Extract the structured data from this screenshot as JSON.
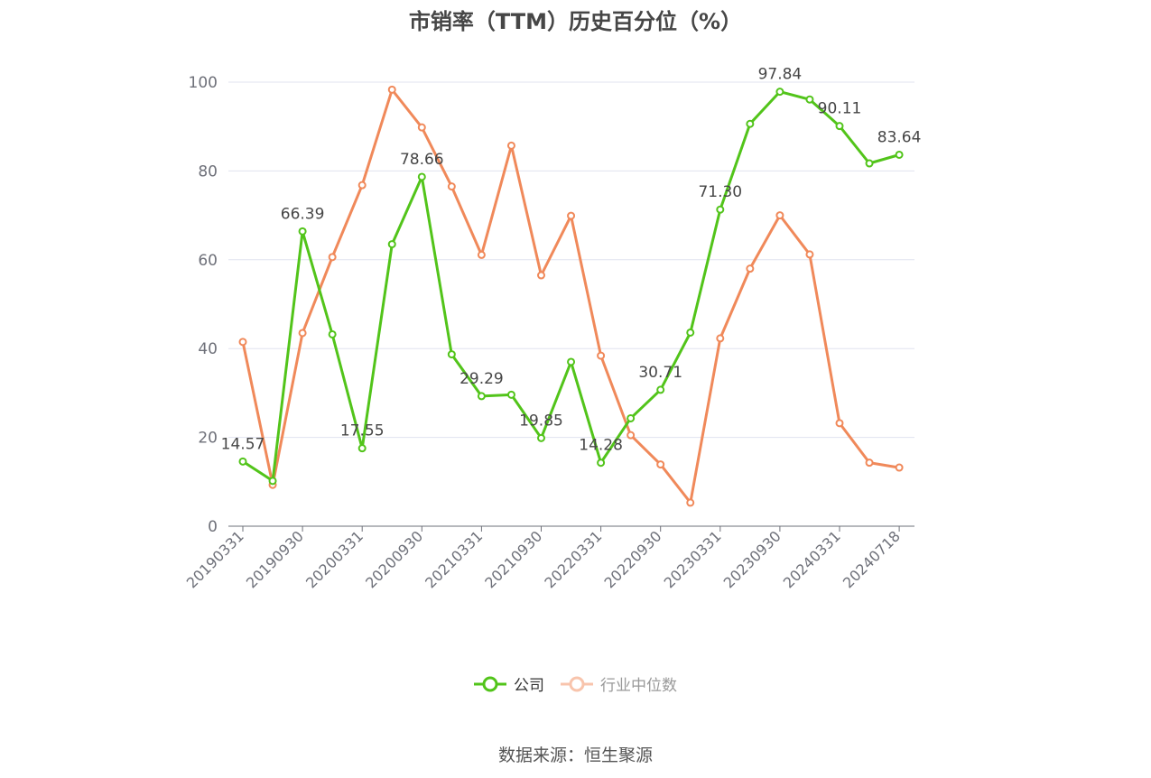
{
  "title": "市销率（TTM）历史百分位（%）",
  "source": "数据来源：恒生聚源",
  "colors": {
    "company": "#52c41a",
    "industry": "#f0895a",
    "grid": "#e0e3ef",
    "axis": "#6e7079",
    "tick_text": "#6e7079",
    "label_text": "#464646"
  },
  "chart_data": {
    "type": "line",
    "title": "市销率（TTM）历史百分位（%）",
    "xlabel": "",
    "ylabel": "",
    "ylim": [
      0,
      100
    ],
    "y_ticks": [
      0,
      20,
      40,
      60,
      80,
      100
    ],
    "grid": true,
    "legend_position": "bottom",
    "x_tick_labels": [
      "20190331",
      "20190930",
      "20200331",
      "20200930",
      "20210331",
      "20210930",
      "20220331",
      "20220930",
      "20230331",
      "20230930",
      "20240331",
      "20240718"
    ],
    "x": [
      "20190331",
      "20190630",
      "20190930",
      "20191231",
      "20200331",
      "20200630",
      "20200930",
      "20201231",
      "20210331",
      "20210630",
      "20210930",
      "20211231",
      "20220331",
      "20220630",
      "20220930",
      "20221231",
      "20230331",
      "20230630",
      "20230930",
      "20231231",
      "20240331",
      "20240630",
      "20240718"
    ],
    "series": [
      {
        "name": "公司",
        "color": "#52c41a",
        "values": [
          14.57,
          10.2,
          66.39,
          43.2,
          17.55,
          63.5,
          78.66,
          38.7,
          29.29,
          29.6,
          19.85,
          37.0,
          14.28,
          24.3,
          30.71,
          43.6,
          71.3,
          90.6,
          97.84,
          96.1,
          90.11,
          81.7,
          83.64
        ],
        "labeled_points": [
          {
            "index": 0,
            "text": "14.57"
          },
          {
            "index": 2,
            "text": "66.39"
          },
          {
            "index": 4,
            "text": "17.55"
          },
          {
            "index": 6,
            "text": "78.66"
          },
          {
            "index": 8,
            "text": "29.29"
          },
          {
            "index": 10,
            "text": "19.85"
          },
          {
            "index": 12,
            "text": "14.28"
          },
          {
            "index": 14,
            "text": "30.71"
          },
          {
            "index": 16,
            "text": "71.30"
          },
          {
            "index": 18,
            "text": "97.84"
          },
          {
            "index": 20,
            "text": "90.11"
          },
          {
            "index": 22,
            "text": "83.64"
          }
        ]
      },
      {
        "name": "行业中位数",
        "color": "#f0895a",
        "values": [
          41.5,
          9.3,
          43.5,
          60.6,
          76.8,
          98.3,
          89.8,
          76.5,
          61.1,
          85.7,
          56.5,
          69.9,
          38.4,
          20.5,
          13.9,
          5.3,
          42.3,
          58.0,
          70.0,
          61.2,
          23.2,
          14.3,
          13.2
        ],
        "labeled_points": []
      }
    ]
  }
}
